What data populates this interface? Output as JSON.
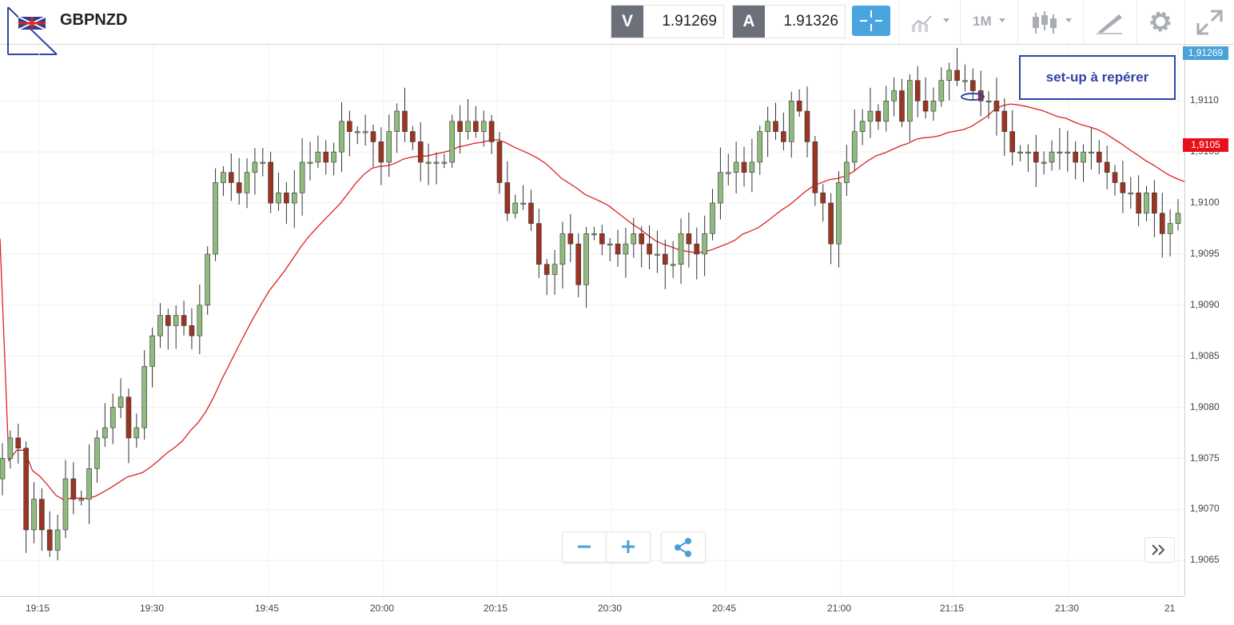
{
  "header": {
    "symbol": "GBPNZD",
    "bid_tag": "V",
    "bid_value": "1.91269",
    "ask_tag": "A",
    "ask_value": "1.91326",
    "timeframe": "1M",
    "icons": [
      "flag-icon",
      "crosshair-icon",
      "line-chart-icon",
      "candlestick-icon",
      "draw-icon",
      "gear-icon",
      "expand-icon"
    ]
  },
  "annotation": "set-up à repérer",
  "price_tags": {
    "current": "1,91269",
    "ma": "1,9105"
  },
  "colors": {
    "bull": "#8fbc7e",
    "bear": "#9b3522",
    "ma_line": "#e02020",
    "accent": "#49a5dd",
    "annotation": "#3344a6"
  },
  "controls": {
    "zoom_out": "−",
    "zoom_in": "+",
    "scroll": "»"
  },
  "chart_data": {
    "type": "candlestick",
    "instrument": "GBPNZD",
    "interval": "1M",
    "x_ticks": [
      "19:15",
      "19:30",
      "19:45",
      "20:00",
      "20:15",
      "20:30",
      "20:45",
      "21:00",
      "21:15",
      "21:30",
      "21"
    ],
    "y_ticks": [
      "1,9110",
      "1,9105",
      "1,9100",
      "1,9095",
      "1,9090",
      "1,9085",
      "1,9080",
      "1,9075",
      "1,9070",
      "1,9065"
    ],
    "ylim": [
      1.90615,
      1.91155
    ],
    "grid": true,
    "candles_close": [
      1.9075,
      1.9077,
      1.9076,
      1.9068,
      1.9071,
      1.9068,
      1.9066,
      1.9068,
      1.9073,
      1.9071,
      1.9071,
      1.9074,
      1.9077,
      1.9078,
      1.908,
      1.9081,
      1.9077,
      1.9078,
      1.9084,
      1.9087,
      1.9089,
      1.9088,
      1.9089,
      1.9088,
      1.9087,
      1.909,
      1.9095,
      1.9102,
      1.9103,
      1.9102,
      1.9101,
      1.9103,
      1.9104,
      1.9104,
      1.91,
      1.9101,
      1.91,
      1.9101,
      1.9104,
      1.9104,
      1.9105,
      1.9104,
      1.9105,
      1.9108,
      1.9107,
      1.9107,
      1.9107,
      1.9106,
      1.9104,
      1.9107,
      1.9109,
      1.9107,
      1.9106,
      1.9104,
      1.9104,
      1.9104,
      1.9104,
      1.9108,
      1.9107,
      1.9108,
      1.9107,
      1.9108,
      1.9106,
      1.9102,
      1.9099,
      1.91,
      1.91,
      1.9098,
      1.9094,
      1.9093,
      1.9094,
      1.9097,
      1.9096,
      1.9092,
      1.9097,
      1.9097,
      1.9096,
      1.9096,
      1.9095,
      1.9096,
      1.9097,
      1.9096,
      1.9095,
      1.9095,
      1.9094,
      1.9094,
      1.9097,
      1.9096,
      1.9095,
      1.9097,
      1.91,
      1.9103,
      1.9103,
      1.9104,
      1.9103,
      1.9104,
      1.9107,
      1.9108,
      1.9107,
      1.9106,
      1.911,
      1.9109,
      1.9106,
      1.9101,
      1.91,
      1.9096,
      1.9102,
      1.9104,
      1.9107,
      1.9108,
      1.9109,
      1.9108,
      1.911,
      1.9111,
      1.9108,
      1.9112,
      1.911,
      1.9109,
      1.911,
      1.9112,
      1.9113,
      1.9112,
      1.9112,
      1.9111,
      1.911,
      1.911,
      1.9109,
      1.9107,
      1.9105,
      1.9105,
      1.9105,
      1.9104,
      1.9104,
      1.9105,
      1.9105,
      1.9105,
      1.9104,
      1.9105,
      1.9105,
      1.9104,
      1.9103,
      1.9102,
      1.9101,
      1.9101,
      1.9099,
      1.9101,
      1.9099,
      1.9097,
      1.9098,
      1.9099
    ]
  }
}
